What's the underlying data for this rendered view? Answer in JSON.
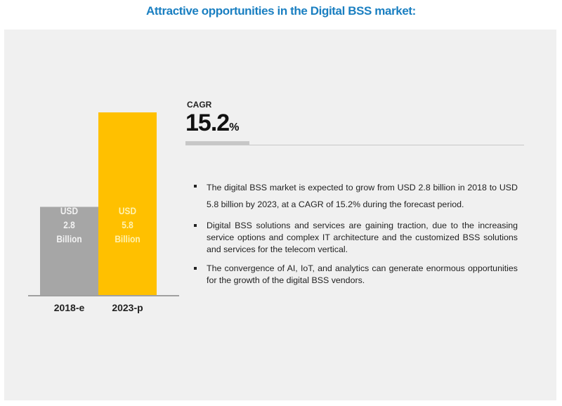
{
  "title": "Attractive opportunities in the Digital BSS market:",
  "chart_data": {
    "type": "bar",
    "title": "Attractive opportunities in the Digital BSS market:",
    "categories": [
      "2018-e",
      "2023-p"
    ],
    "values": [
      2.8,
      5.8
    ],
    "unit": "USD Billion",
    "bar_labels": [
      [
        "USD",
        "2.8",
        "Billion"
      ],
      [
        "USD",
        "5.8",
        "Billion"
      ]
    ],
    "colors": [
      "#a6a6a6",
      "#ffc000"
    ],
    "xlabel": "",
    "ylabel": "",
    "ylim": [
      0,
      5.8
    ],
    "grid": false,
    "axes_visible": false
  },
  "cagr": {
    "label": "CAGR",
    "value": "15.2",
    "unit": "%"
  },
  "bullets": [
    "The digital BSS market is expected to grow from USD  2.8 billion in 2018 to USD   5.8 billion by 2023, at a CAGR of 15.2% during the forecast period.",
    "Digital BSS solutions and services are gaining traction, due to the increasing service options and complex IT architecture and the customized BSS solutions and services for the telecom vertical.",
    "The convergence of AI, IoT, and analytics can generate enormous opportunities for the growth of the digital BSS vendors."
  ],
  "colors": {
    "title": "#1a7fc1",
    "panel_bg": "#f0f0f0",
    "rule": "#c7c7c7"
  }
}
